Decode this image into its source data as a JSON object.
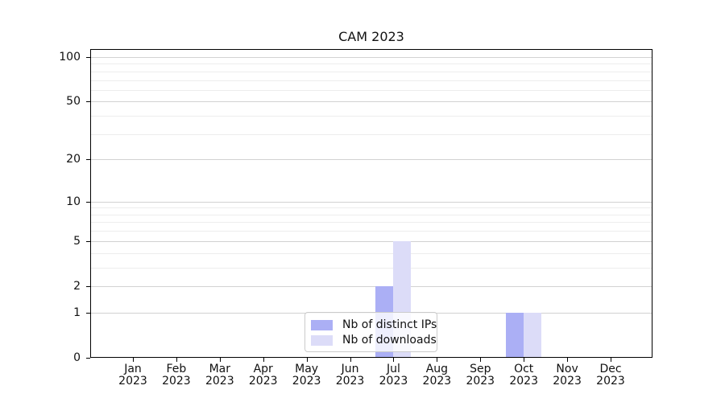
{
  "chart_data": {
    "type": "bar",
    "title": "CAM 2023",
    "categories": [
      "Jan 2023",
      "Feb 2023",
      "Mar 2023",
      "Apr 2023",
      "May 2023",
      "Jun 2023",
      "Jul 2023",
      "Aug 2023",
      "Sep 2023",
      "Oct 2023",
      "Nov 2023",
      "Dec 2023"
    ],
    "series": [
      {
        "name": "Nb of distinct IPs",
        "color": "#abaff5",
        "values": [
          0,
          0,
          0,
          0,
          0,
          0,
          2,
          0,
          0,
          1,
          0,
          0
        ]
      },
      {
        "name": "Nb of downloads",
        "color": "#dcdcf8",
        "values": [
          0,
          0,
          0,
          0,
          0,
          0,
          5,
          0,
          0,
          1,
          0,
          0
        ]
      }
    ],
    "yscale": "log1p",
    "ylim": [
      0,
      113
    ],
    "y_major_ticks": [
      0,
      1,
      2,
      5,
      10,
      20,
      50,
      100
    ],
    "y_minor_ticks": [
      3,
      4,
      6,
      7,
      8,
      9,
      30,
      40,
      60,
      70,
      80,
      90
    ],
    "grid": "horizontal",
    "legend_position": "lower center",
    "xlabel": "",
    "ylabel": ""
  },
  "colors": {
    "major_grid": "#d2d2d2",
    "minor_grid": "#ededed",
    "spine": "#000000",
    "text": "#111111",
    "legend_border": "#cbcbcb"
  }
}
